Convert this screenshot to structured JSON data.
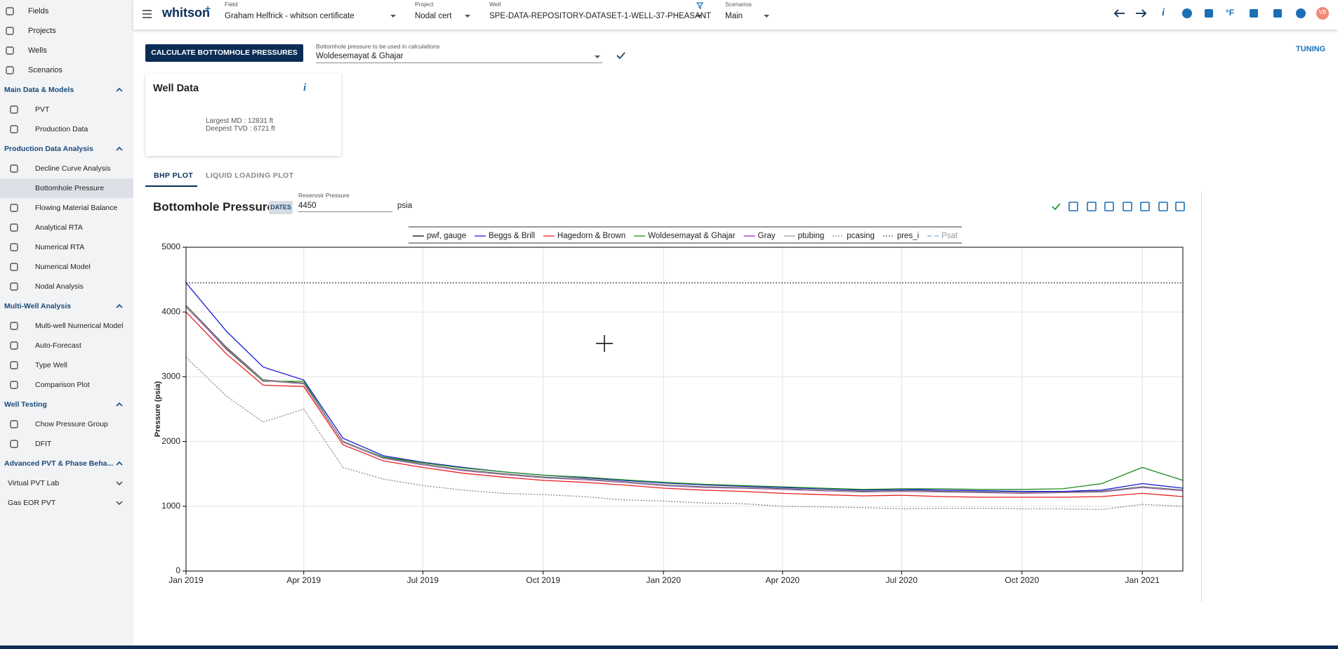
{
  "header": {
    "logo": "whitson",
    "logo_plus": "+",
    "fields": [
      {
        "label": "Field",
        "value": "Graham Helfrick - whitson certificate"
      },
      {
        "label": "Project",
        "value": "Nodal cert"
      },
      {
        "label": "Well",
        "value": "SPE-DATA-REPOSITORY-DATASET-1-WELL-37-PHEASANT"
      },
      {
        "label": "Scenarios",
        "value": "Main"
      }
    ],
    "info_icon": "i",
    "unit_icon": "°F",
    "avatar": "VB"
  },
  "sidebar": {
    "top": [
      "Fields",
      "Projects",
      "Wells",
      "Scenarios"
    ],
    "sections": [
      {
        "title": "Main Data & Models",
        "items": [
          "PVT",
          "Production Data"
        ]
      },
      {
        "title": "Production Data Analysis",
        "items": [
          "Decline Curve Analysis",
          "Bottomhole Pressure",
          "Flowing Material Balance",
          "Analytical RTA",
          "Numerical RTA",
          "Numerical Model",
          "Nodal Analysis"
        ]
      },
      {
        "title": "Multi-Well Analysis",
        "items": [
          "Multi-well Numerical Model",
          "Auto-Forecast",
          "Type Well",
          "Comparison Plot"
        ]
      },
      {
        "title": "Well Testing",
        "items": [
          "Chow Pressure Group",
          "DFIT"
        ]
      },
      {
        "title": "Advanced PVT & Phase Beha...",
        "items": []
      }
    ],
    "collapsed": [
      "Virtual PVT Lab",
      "Gas EOR PVT"
    ]
  },
  "toolbar": {
    "button": "CALCULATE BOTTOMHOLE PRESSURES",
    "select_label": "Bottomhole pressure to be used in calculations",
    "select_value": "Woldesemayat & Ghajar",
    "tuning": "TUNING"
  },
  "well_data": {
    "title": "Well Data",
    "info": "i",
    "lines": [
      "Largest MD :  12831 ft",
      "Deepest TVD :  6721 ft"
    ]
  },
  "tabs": [
    "BHP PLOT",
    "LIQUID LOADING PLOT"
  ],
  "chart_header": {
    "title": "Bottomhole Pressure",
    "dates": "DATES",
    "reservoir_label": "Reservoir Pressure",
    "reservoir_value": "4450",
    "unit": "psia"
  },
  "chart_data": {
    "type": "line",
    "ylabel": "Pressure (psia)",
    "x": [
      "2019-01",
      "2019-02",
      "2019-03",
      "2019-04",
      "2019-05",
      "2019-06",
      "2019-07",
      "2019-08",
      "2019-09",
      "2019-10",
      "2019-11",
      "2019-12",
      "2020-01",
      "2020-02",
      "2020-03",
      "2020-04",
      "2020-05",
      "2020-06",
      "2020-07",
      "2020-08",
      "2020-09",
      "2020-10",
      "2020-11",
      "2020-12",
      "2021-01",
      "2021-02"
    ],
    "xlim": [
      "2019-01",
      "2021-02"
    ],
    "xticks": [
      {
        "value": "2019-01",
        "label": "Jan 2019"
      },
      {
        "value": "2019-04",
        "label": "Apr 2019"
      },
      {
        "value": "2019-07",
        "label": "Jul 2019"
      },
      {
        "value": "2019-10",
        "label": "Oct 2019"
      },
      {
        "value": "2020-01",
        "label": "Jan 2020"
      },
      {
        "value": "2020-04",
        "label": "Apr 2020"
      },
      {
        "value": "2020-07",
        "label": "Jul 2020"
      },
      {
        "value": "2020-10",
        "label": "Oct 2020"
      },
      {
        "value": "2021-01",
        "label": "Jan 2021"
      }
    ],
    "ylim": [
      0,
      5000
    ],
    "yticks": [
      0,
      1000,
      2000,
      3000,
      4000,
      5000
    ],
    "grid": true,
    "series": [
      {
        "name": "pwf, gauge",
        "color": "#000000",
        "style": "solid",
        "values": [
          4100,
          3450,
          2950,
          2900,
          2000,
          1750,
          1650,
          1560,
          1500,
          1450,
          1420,
          1380,
          1330,
          1300,
          1290,
          1270,
          1250,
          1230,
          1240,
          1230,
          1220,
          1210,
          1220,
          1230,
          1300,
          1250
        ]
      },
      {
        "name": "Beggs & Brill",
        "color": "#1a1ad6",
        "style": "solid",
        "values": [
          4450,
          3700,
          3150,
          2950,
          2050,
          1780,
          1680,
          1600,
          1530,
          1480,
          1440,
          1400,
          1360,
          1330,
          1310,
          1290,
          1270,
          1250,
          1260,
          1250,
          1240,
          1230,
          1230,
          1250,
          1350,
          1280
        ]
      },
      {
        "name": "Hagedorn & Brown",
        "color": "#e82020",
        "style": "solid",
        "values": [
          4000,
          3350,
          2870,
          2850,
          1950,
          1700,
          1600,
          1510,
          1450,
          1400,
          1370,
          1330,
          1280,
          1250,
          1230,
          1200,
          1180,
          1160,
          1170,
          1150,
          1140,
          1140,
          1140,
          1150,
          1200,
          1150
        ]
      },
      {
        "name": "Woldesemayat & Ghajar",
        "color": "#1f8a1f",
        "style": "solid",
        "values": [
          4100,
          3420,
          2930,
          2930,
          1990,
          1760,
          1670,
          1590,
          1530,
          1480,
          1450,
          1410,
          1370,
          1340,
          1320,
          1300,
          1280,
          1260,
          1270,
          1270,
          1260,
          1260,
          1270,
          1350,
          1600,
          1400
        ]
      },
      {
        "name": "Gray",
        "color": "#a020c0",
        "style": "solid",
        "values": [
          4080,
          3430,
          2940,
          2890,
          1990,
          1740,
          1640,
          1550,
          1490,
          1440,
          1410,
          1370,
          1320,
          1290,
          1280,
          1260,
          1240,
          1220,
          1230,
          1220,
          1210,
          1200,
          1210,
          1220,
          1290,
          1240
        ]
      },
      {
        "name": "ptubing",
        "color": "#9a9a9a",
        "style": "solid",
        "values": [
          4090,
          3440,
          2945,
          2895,
          1995,
          1745,
          1645,
          1555,
          1495,
          1445,
          1415,
          1375,
          1325,
          1295,
          1285,
          1265,
          1245,
          1225,
          1235,
          1225,
          1215,
          1205,
          1215,
          1225,
          1295,
          1245
        ]
      },
      {
        "name": "pcasing",
        "color": "#888888",
        "style": "dotted",
        "values": [
          3300,
          2700,
          2300,
          2500,
          1600,
          1420,
          1320,
          1250,
          1200,
          1180,
          1150,
          1100,
          1080,
          1050,
          1040,
          1000,
          990,
          980,
          960,
          970,
          970,
          960,
          960,
          950,
          1030,
          1000
        ]
      },
      {
        "name": "pres_i",
        "color": "#555555",
        "style": "dotted",
        "values": [
          4450,
          4450,
          4450,
          4450,
          4450,
          4450,
          4450,
          4450,
          4450,
          4450,
          4450,
          4450,
          4450,
          4450,
          4450,
          4450,
          4450,
          4450,
          4450,
          4450,
          4450,
          4450,
          4450,
          4450,
          4450,
          4450
        ]
      },
      {
        "name": "Psat",
        "color": "#7aa7d6",
        "style": "dashed",
        "values": [
          null,
          null,
          null,
          null,
          null,
          null,
          null,
          null,
          null,
          null,
          null,
          null,
          null,
          null,
          null,
          null,
          null,
          null,
          null,
          null,
          null,
          null,
          null,
          null,
          null,
          null
        ]
      }
    ]
  }
}
